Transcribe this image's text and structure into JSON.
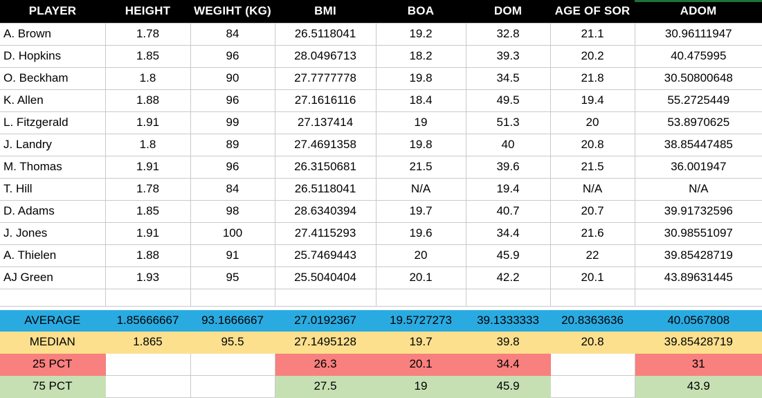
{
  "table": {
    "columns": [
      {
        "key": "player",
        "label": "PLAYER"
      },
      {
        "key": "height",
        "label": "HEIGHT"
      },
      {
        "key": "weight_kg",
        "label": "WEGIHT (KG)"
      },
      {
        "key": "bmi",
        "label": "BMI"
      },
      {
        "key": "boa",
        "label": "BOA"
      },
      {
        "key": "dom",
        "label": "DOM"
      },
      {
        "key": "age_of_sor",
        "label": "AGE OF SOR"
      },
      {
        "key": "adom",
        "label": "ADOM"
      }
    ],
    "rows": [
      [
        "A. Brown",
        "1.78",
        "84",
        "26.5118041",
        "19.2",
        "32.8",
        "21.1",
        "30.96111947"
      ],
      [
        "D. Hopkins",
        "1.85",
        "96",
        "28.0496713",
        "18.2",
        "39.3",
        "20.2",
        "40.475995"
      ],
      [
        "O. Beckham",
        "1.8",
        "90",
        "27.7777778",
        "19.8",
        "34.5",
        "21.8",
        "30.50800648"
      ],
      [
        "K. Allen",
        "1.88",
        "96",
        "27.1616116",
        "18.4",
        "49.5",
        "19.4",
        "55.2725449"
      ],
      [
        "L. Fitzgerald",
        "1.91",
        "99",
        "27.137414",
        "19",
        "51.3",
        "20",
        "53.8970625"
      ],
      [
        "J. Landry",
        "1.8",
        "89",
        "27.4691358",
        "19.8",
        "40",
        "20.8",
        "38.85447485"
      ],
      [
        "M. Thomas",
        "1.91",
        "96",
        "26.3150681",
        "21.5",
        "39.6",
        "21.5",
        "36.001947"
      ],
      [
        "T. Hill",
        "1.78",
        "84",
        "26.5118041",
        "N/A",
        "19.4",
        "N/A",
        "N/A"
      ],
      [
        "D. Adams",
        "1.85",
        "98",
        "28.6340394",
        "19.7",
        "40.7",
        "20.7",
        "39.91732596"
      ],
      [
        "J. Jones",
        "1.91",
        "100",
        "27.4115293",
        "19.6",
        "34.4",
        "21.6",
        "30.98551097"
      ],
      [
        "A. Thielen",
        "1.88",
        "91",
        "25.7469443",
        "20",
        "45.9",
        "22",
        "39.85428719"
      ],
      [
        "AJ Green",
        "1.93",
        "95",
        "25.5040404",
        "20.1",
        "42.2",
        "20.1",
        "43.89631445"
      ]
    ],
    "summary": [
      {
        "label": "AVERAGE",
        "color": "#29ABE2",
        "values": [
          "1.85666667",
          "93.1666667",
          "27.0192367",
          "19.5727273",
          "39.1333333",
          "20.8363636",
          "40.0567808"
        ]
      },
      {
        "label": "MEDIAN",
        "color": "#FCE08E",
        "values": [
          "1.865",
          "95.5",
          "27.1495128",
          "19.7",
          "39.8",
          "20.8",
          "39.85428719"
        ]
      },
      {
        "label": "25 PCT",
        "color": "#F8807E",
        "values": [
          "",
          "",
          "26.3",
          "20.1",
          "34.4",
          "",
          "31"
        ]
      },
      {
        "label": "75 PCT",
        "color": "#C6E0B4",
        "values": [
          "",
          "",
          "27.5",
          "19",
          "45.9",
          "",
          "43.9"
        ]
      }
    ]
  },
  "colors": {
    "header_bg": "#000000",
    "header_text": "#FFFFFF",
    "grid_line": "#C9C9C9",
    "selection_strip": "#1F7235"
  }
}
